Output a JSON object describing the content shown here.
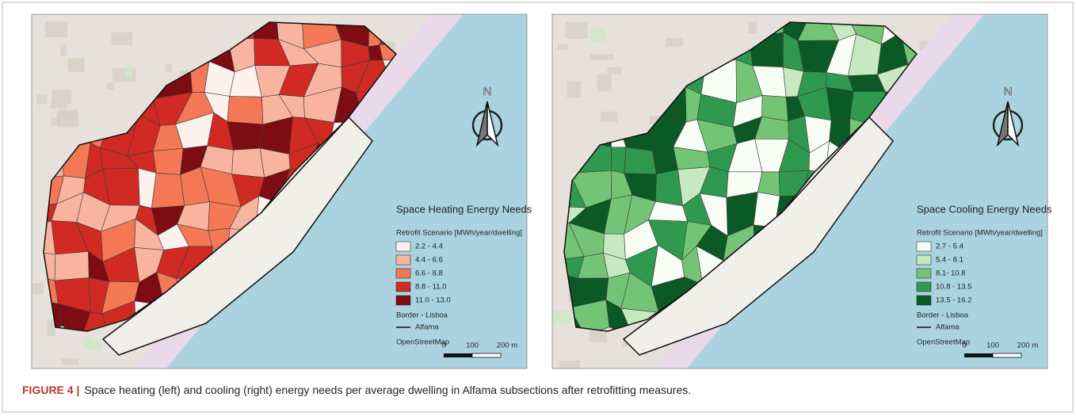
{
  "maps": [
    {
      "legend_title": "Space Heating Energy Needs",
      "legend_subtitle": "Retrofit Scenario [MWh/year/dwelling]",
      "classes": [
        {
          "label": "2.2 - 4.4",
          "color": "#fdf1ee"
        },
        {
          "label": "4.4 - 6.6",
          "color": "#f9b4a0"
        },
        {
          "label": "6.6 - 8.8",
          "color": "#f47756"
        },
        {
          "label": "8.8 - 11.0",
          "color": "#d02a23"
        },
        {
          "label": "11.0 - 13.0",
          "color": "#7d0d13"
        }
      ],
      "border_label": "Border - Lisboa",
      "line_label": "Alfama",
      "basemap_label": "OpenStreetMap",
      "north": "N",
      "scale": [
        "0",
        "100",
        "200 m"
      ]
    },
    {
      "legend_title": "Space Cooling Energy Needs",
      "legend_subtitle": "Retrofit Scenario [MWh/year/dwelling]",
      "classes": [
        {
          "label": "2.7 - 5.4",
          "color": "#f7fcf5"
        },
        {
          "label": "5.4 - 8.1",
          "color": "#c7e9c0"
        },
        {
          "label": "8.1- 10.8",
          "color": "#74c476"
        },
        {
          "label": "10.8 - 13.5",
          "color": "#2f9a4f"
        },
        {
          "label": "13.5 - 16.2",
          "color": "#0b5a26"
        }
      ],
      "border_label": "Border - Lisboa",
      "line_label": "Alfama",
      "basemap_label": "OpenStreetMap",
      "north": "N",
      "scale": [
        "0",
        "100",
        "200 m"
      ]
    }
  ],
  "caption": {
    "label": "FIGURE 4 |",
    "text": "Space heating (left) and cooling (right) energy needs per average dwelling in Alfama subsections after retrofitting measures."
  }
}
